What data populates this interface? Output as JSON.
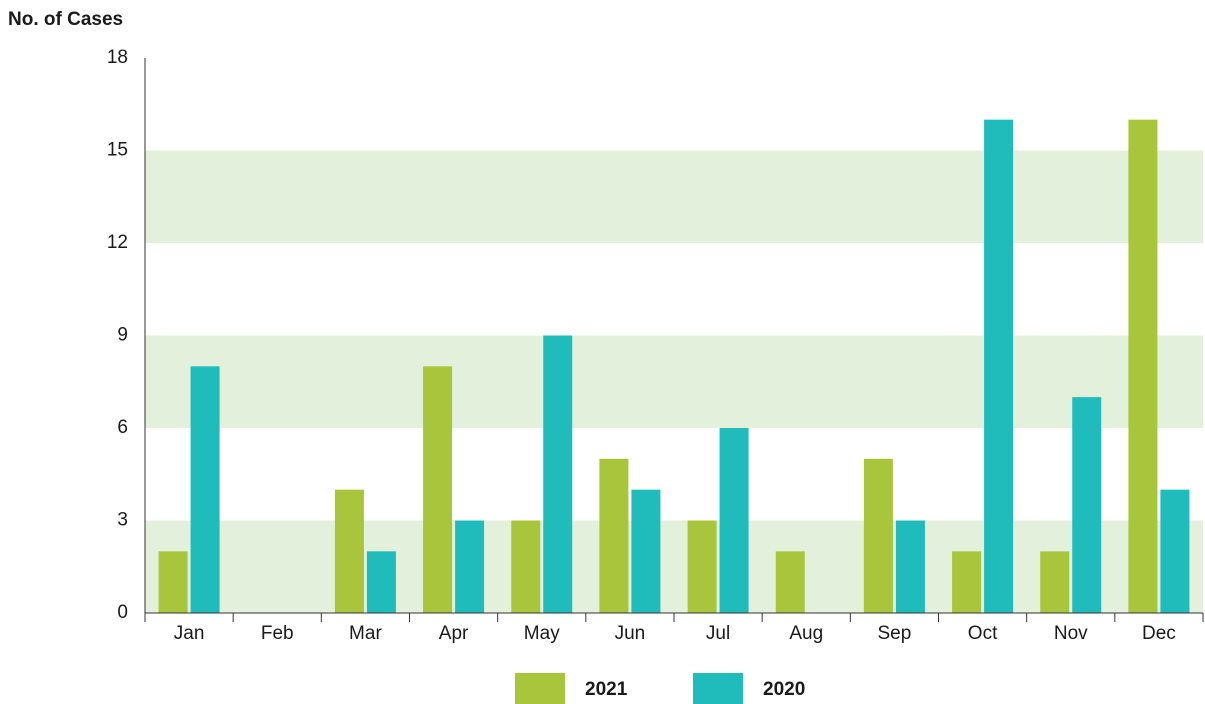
{
  "chart_data": {
    "type": "bar",
    "y_label": "No. of Cases",
    "categories": [
      "Jan",
      "Feb",
      "Mar",
      "Apr",
      "May",
      "Jun",
      "Jul",
      "Aug",
      "Sep",
      "Oct",
      "Nov",
      "Dec"
    ],
    "series": [
      {
        "name": "2021",
        "color": "#a8c53c",
        "values": [
          2,
          0,
          4,
          8,
          3,
          5,
          3,
          2,
          5,
          2,
          2,
          16
        ]
      },
      {
        "name": "2020",
        "color": "#20bcbc",
        "values": [
          8,
          0,
          2,
          3,
          9,
          4,
          6,
          0,
          3,
          16,
          7,
          4
        ]
      }
    ],
    "ylim": [
      0,
      18
    ],
    "yticks": [
      0,
      3,
      6,
      9,
      12,
      15,
      18
    ],
    "bands": true,
    "band_color": "#e3f0dc",
    "legend": "bottom"
  }
}
